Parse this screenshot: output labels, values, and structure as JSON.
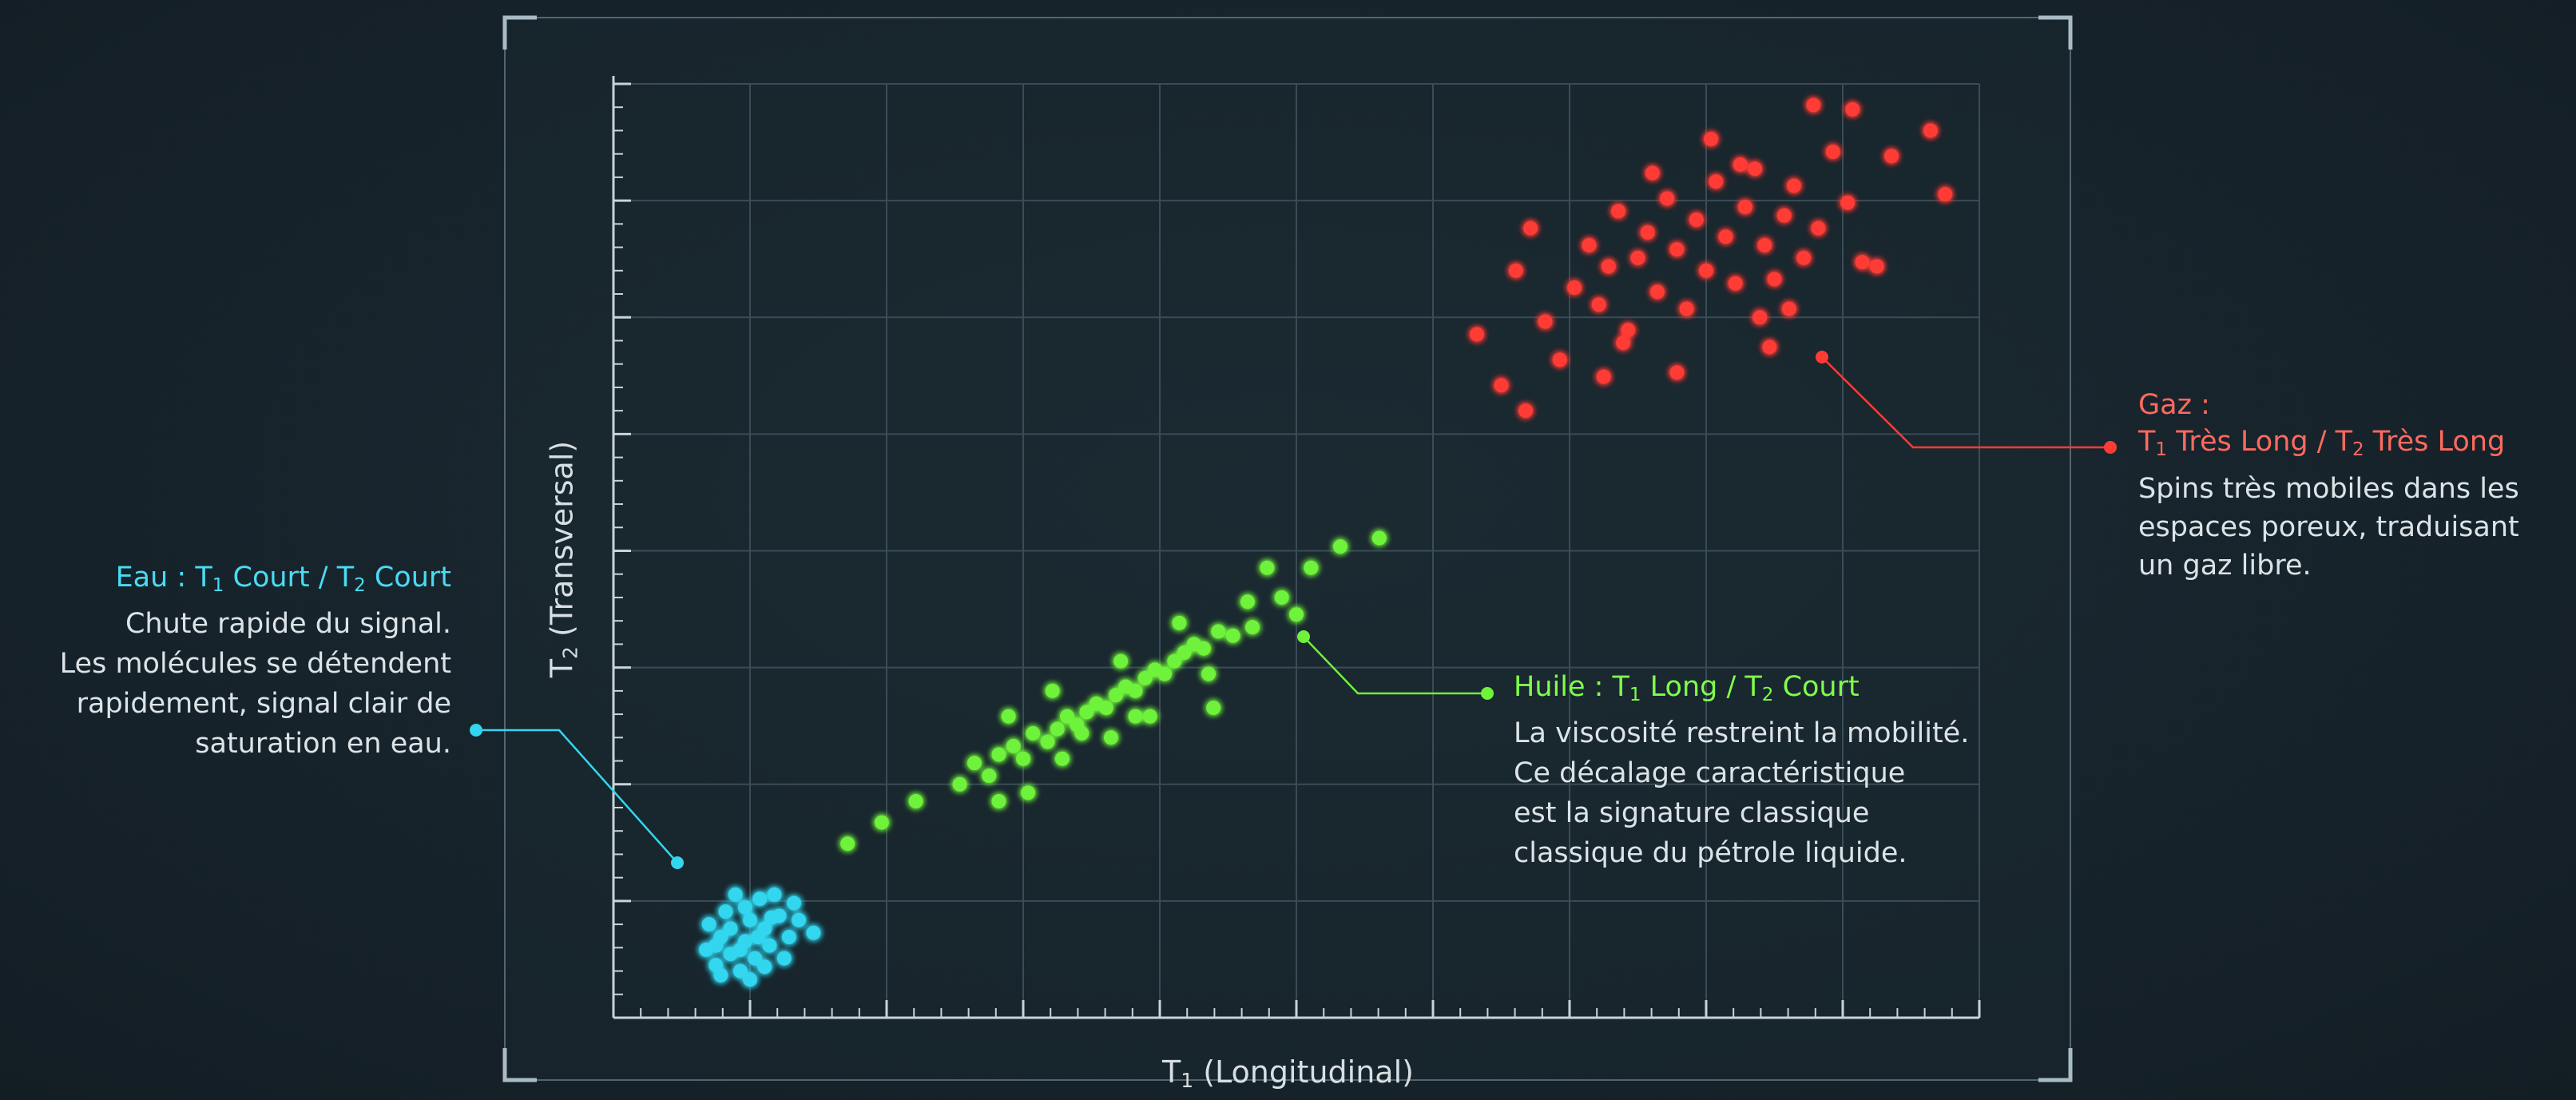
{
  "chart_data": {
    "type": "scatter",
    "xlabel": "T1 (Longitudinal)",
    "ylabel": "T2 (Transversal)",
    "grid": true,
    "series": [
      {
        "name": "Eau : T1 Court / T2 Court",
        "color": "#33d6ee",
        "points": [
          [
            0.95,
            0.8
          ],
          [
            1.05,
            0.62
          ],
          [
            1.1,
            0.95
          ],
          [
            1.2,
            0.75
          ],
          [
            1.3,
            0.55
          ],
          [
            0.98,
            1.1
          ],
          [
            1.15,
            1.25
          ],
          [
            1.35,
            0.9
          ],
          [
            1.45,
            0.7
          ],
          [
            1.55,
            1.05
          ],
          [
            1.6,
            0.85
          ],
          [
            1.7,
            1.2
          ],
          [
            1.5,
            1.4
          ],
          [
            1.25,
            1.45
          ],
          [
            1.4,
            1.15
          ],
          [
            1.65,
            1.45
          ],
          [
            1.8,
            0.95
          ],
          [
            1.85,
            1.35
          ],
          [
            1.3,
            0.8
          ],
          [
            1.55,
            0.6
          ],
          [
            1.75,
            0.7
          ],
          [
            2.05,
            1.0
          ],
          [
            1.2,
            1.05
          ],
          [
            1.4,
            0.45
          ],
          [
            1.1,
            0.5
          ],
          [
            1.9,
            1.15
          ],
          [
            1.48,
            0.95
          ],
          [
            1.62,
            1.18
          ],
          [
            1.35,
            1.3
          ],
          [
            1.05,
            0.85
          ]
        ]
      },
      {
        "name": "Huile : T1 Long / T2 Court",
        "color": "#6ef23a",
        "points": [
          [
            2.4,
            2.05
          ],
          [
            2.75,
            2.3
          ],
          [
            3.1,
            2.55
          ],
          [
            3.55,
            2.75
          ],
          [
            3.7,
            3.0
          ],
          [
            3.85,
            2.85
          ],
          [
            3.95,
            3.1
          ],
          [
            4.1,
            3.2
          ],
          [
            4.2,
            3.05
          ],
          [
            4.3,
            3.35
          ],
          [
            4.45,
            3.25
          ],
          [
            4.55,
            3.4
          ],
          [
            4.65,
            3.55
          ],
          [
            4.75,
            3.45
          ],
          [
            4.85,
            3.6
          ],
          [
            4.95,
            3.7
          ],
          [
            5.05,
            3.65
          ],
          [
            5.15,
            3.8
          ],
          [
            5.25,
            3.9
          ],
          [
            5.35,
            3.85
          ],
          [
            5.45,
            4.0
          ],
          [
            5.55,
            4.1
          ],
          [
            5.65,
            4.05
          ],
          [
            5.75,
            4.2
          ],
          [
            5.85,
            4.3
          ],
          [
            5.95,
            4.4
          ],
          [
            6.05,
            4.35
          ],
          [
            6.2,
            4.55
          ],
          [
            6.35,
            4.5
          ],
          [
            6.55,
            4.6
          ],
          [
            6.85,
            4.95
          ],
          [
            7.15,
            5.3
          ],
          [
            7.45,
            5.55
          ],
          [
            7.85,
            5.65
          ],
          [
            4.25,
            2.65
          ],
          [
            4.6,
            3.05
          ],
          [
            5.1,
            3.3
          ],
          [
            5.5,
            3.55
          ],
          [
            4.05,
            3.55
          ],
          [
            4.5,
            3.85
          ],
          [
            5.2,
            4.2
          ],
          [
            5.8,
            4.65
          ],
          [
            6.1,
            4.05
          ],
          [
            6.5,
            4.9
          ],
          [
            7.0,
            4.75
          ],
          [
            4.8,
            3.35
          ],
          [
            5.35,
            3.55
          ],
          [
            3.95,
            2.55
          ],
          [
            6.7,
            5.3
          ],
          [
            6.15,
            3.65
          ]
        ]
      },
      {
        "name": "Gaz : T1 Très Long / T2 Très Long",
        "color": "#ff3b35",
        "points": [
          [
            8.85,
            8.05
          ],
          [
            9.1,
            7.45
          ],
          [
            9.25,
            8.8
          ],
          [
            9.4,
            9.3
          ],
          [
            9.55,
            8.2
          ],
          [
            9.7,
            7.75
          ],
          [
            9.85,
            8.6
          ],
          [
            10.0,
            9.1
          ],
          [
            10.1,
            8.4
          ],
          [
            10.2,
            8.85
          ],
          [
            10.3,
            9.5
          ],
          [
            10.4,
            8.1
          ],
          [
            10.5,
            8.95
          ],
          [
            10.6,
            9.25
          ],
          [
            10.7,
            8.55
          ],
          [
            10.8,
            9.65
          ],
          [
            10.9,
            9.05
          ],
          [
            11.0,
            8.35
          ],
          [
            11.1,
            9.4
          ],
          [
            11.2,
            8.8
          ],
          [
            11.3,
            9.85
          ],
          [
            11.4,
            9.2
          ],
          [
            11.5,
            8.65
          ],
          [
            11.6,
            9.55
          ],
          [
            11.7,
            10.0
          ],
          [
            11.8,
            9.1
          ],
          [
            11.9,
            8.7
          ],
          [
            12.0,
            9.45
          ],
          [
            12.1,
            9.8
          ],
          [
            12.2,
            8.95
          ],
          [
            12.35,
            9.3
          ],
          [
            12.5,
            10.2
          ],
          [
            12.65,
            9.6
          ],
          [
            12.8,
            8.9
          ],
          [
            13.1,
            10.15
          ],
          [
            13.5,
            10.45
          ],
          [
            13.65,
            9.7
          ],
          [
            12.7,
            10.7
          ],
          [
            12.3,
            10.75
          ],
          [
            10.9,
            7.6
          ],
          [
            11.85,
            7.9
          ],
          [
            11.25,
            10.35
          ],
          [
            10.35,
            7.95
          ],
          [
            9.35,
            7.15
          ],
          [
            10.65,
            9.95
          ],
          [
            11.55,
            10.05
          ],
          [
            12.05,
            8.35
          ],
          [
            12.95,
            8.85
          ],
          [
            10.15,
            7.55
          ],
          [
            11.75,
            8.25
          ]
        ]
      }
    ],
    "annotations": {
      "water": {
        "title_prefix": "Eau : T",
        "sub1": "1",
        "title_mid": " Court / T",
        "sub2": "2",
        "title_suffix": " Court",
        "lines": [
          "Chute rapide du signal.",
          "Les molécules se détendent",
          "rapidement, signal clair de",
          "saturation en eau."
        ]
      },
      "oil": {
        "title_prefix": "Huile : T",
        "sub1": "1",
        "title_mid": " Long / T",
        "sub2": "2",
        "title_suffix": " Court",
        "lines": [
          "La viscosité restreint la mobilité.",
          "Ce décalage caractéristique",
          "est la signature classique",
          "classique du pétrole liquide."
        ]
      },
      "gas": {
        "title_line1": "Gaz :",
        "title_prefix": "T",
        "sub1": "1",
        "title_mid": " Très Long / T",
        "sub2": "2",
        "title_suffix": " Très Long",
        "lines": [
          "Spins très mobiles dans les",
          "espaces poreux, traduisant",
          "un gaz libre."
        ]
      }
    }
  },
  "colors": {
    "frame": "#9fb3bd",
    "grid": "#3a4c57",
    "axis": "#c9d3d8"
  }
}
